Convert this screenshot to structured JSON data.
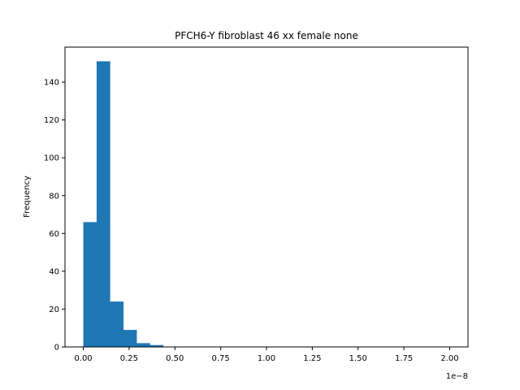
{
  "chart_data": {
    "type": "bar",
    "title": "PFCH6-Y fibroblast 46 xx female none",
    "xlabel": "",
    "ylabel": "Frequency",
    "x_offset_label": "1e−8",
    "x_scale_factor": 1e-08,
    "xlim": [
      -0.1,
      2.1
    ],
    "ylim": [
      0,
      158.5
    ],
    "x_ticks": [
      0.0,
      0.25,
      0.5,
      0.75,
      1.0,
      1.25,
      1.5,
      1.75,
      2.0
    ],
    "x_tick_labels": [
      "0.00",
      "0.25",
      "0.50",
      "0.75",
      "1.00",
      "1.25",
      "1.50",
      "1.75",
      "2.00"
    ],
    "y_ticks": [
      0,
      20,
      40,
      60,
      80,
      100,
      120,
      140
    ],
    "y_tick_labels": [
      "0",
      "20",
      "40",
      "60",
      "80",
      "100",
      "120",
      "140"
    ],
    "bin_edges": [
      0.0,
      0.0727,
      0.1454,
      0.2181,
      0.2908,
      0.3635,
      0.4362,
      0.5089,
      0.5816,
      0.6543,
      0.727,
      0.7997,
      0.8724,
      0.9451,
      1.0178,
      1.0905,
      1.1632,
      1.2359,
      1.3086,
      1.3813,
      1.454,
      1.5267,
      1.5994,
      1.6721,
      1.7448,
      1.8175,
      1.8902,
      1.9629,
      2.0
    ],
    "values": [
      66,
      151,
      24,
      9,
      2,
      1,
      0,
      0,
      0,
      0,
      0,
      0,
      0,
      0,
      0,
      0,
      0,
      0,
      0,
      0,
      0,
      0,
      0,
      0,
      0,
      0,
      0,
      0
    ],
    "bar_color": "#1f77b4",
    "grid": false,
    "legend": "none"
  }
}
